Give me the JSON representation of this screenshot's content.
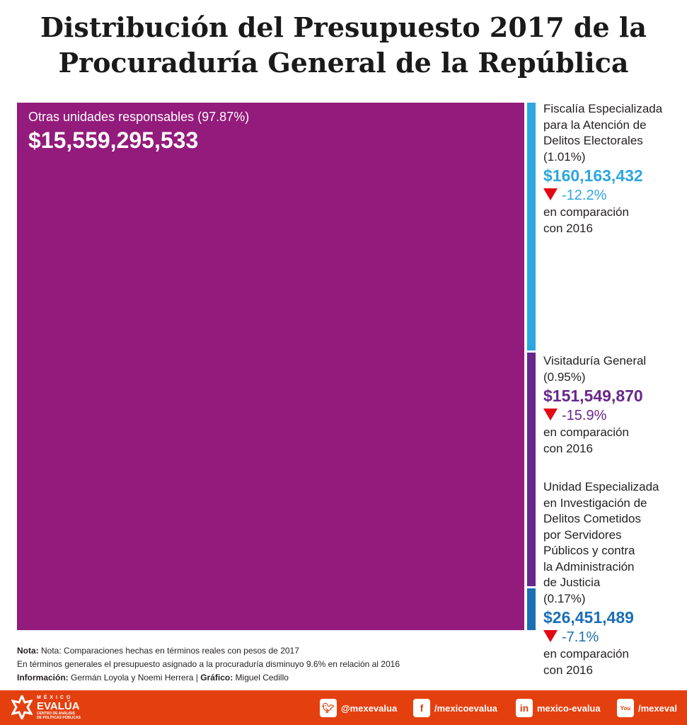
{
  "title": {
    "line1": "Distribución del Presupuesto 2017  de la",
    "line2": "Procuraduría General de la República"
  },
  "chart_data": {
    "type": "treemap",
    "title": "Distribución del Presupuesto 2017  de la Procuraduría General de la República",
    "items": [
      {
        "name": "Otras unidades responsables",
        "percent_label": "(97.87%)",
        "percent": 97.87,
        "value": 15559295533,
        "value_label": "$15,559,295,533",
        "color": "#931b7b"
      },
      {
        "name": "Fiscalía Especializada para la Atención de Delitos Electorales",
        "name_lines": [
          "Fiscalía Especializada",
          "para la Atención de",
          "Delitos Electorales"
        ],
        "percent_label": "(1.01%)",
        "percent": 1.01,
        "value": 160163432,
        "value_label": "$160,163,432",
        "change_label": "-12.2%",
        "change": -12.2,
        "color": "#2ea6de"
      },
      {
        "name": "Visitaduría General",
        "name_lines": [
          "Visitaduría General"
        ],
        "percent_label": "(0.95%)",
        "percent": 0.95,
        "value": 151549870,
        "value_label": "$151,549,870",
        "change_label": "-15.9%",
        "change": -15.9,
        "color": "#68278a"
      },
      {
        "name": "Unidad Especializada en Investigación de Delitos Cometidos por Servidores Públicos y contra la Administración de Justicia",
        "name_lines": [
          "Unidad Especializada",
          "en Investigación de",
          "Delitos Cometidos",
          "por Servidores",
          "Públicos y contra",
          "la Administración",
          "de Justicia"
        ],
        "percent_label": "(0.17%)",
        "percent": 0.17,
        "value": 26451489,
        "value_label": "$26,451,489",
        "change_label": "-7.1%",
        "change": -7.1,
        "color": "#1b6fb5"
      }
    ],
    "comparison_text": [
      "en comparación",
      "con 2016"
    ],
    "decrease_color": "#e30613"
  },
  "notes": {
    "nota_label": "Nota:",
    "nota_text": " Nota: Comparaciones hechas en términos reales con pesos de 2017",
    "line2": "En términos generales el presupuesto asignado a la procuraduría  disminuyo 9.6% en relación al 2016",
    "info_label": "Información:",
    "info_text": " Germán Loyola y Noemi Herrera | ",
    "grafico_label": "Gráfico:",
    "grafico_text": " Miguel Cedillo"
  },
  "footer": {
    "color": "#e4400f",
    "logo": {
      "top": "M É X I C O",
      "main": "EVALÚA",
      "sub1": "CENTRO DE ANÁLISIS",
      "sub2": "DE POLÍTICAS PÚBLICAS"
    },
    "social": [
      {
        "icon": "twitter-icon",
        "label": "@mexevalua"
      },
      {
        "icon": "facebook-icon",
        "label": "/mexicoevalua"
      },
      {
        "icon": "linkedin-icon",
        "label": "mexico-evalua"
      },
      {
        "icon": "youtube-icon",
        "label": "/mexeval"
      }
    ]
  }
}
